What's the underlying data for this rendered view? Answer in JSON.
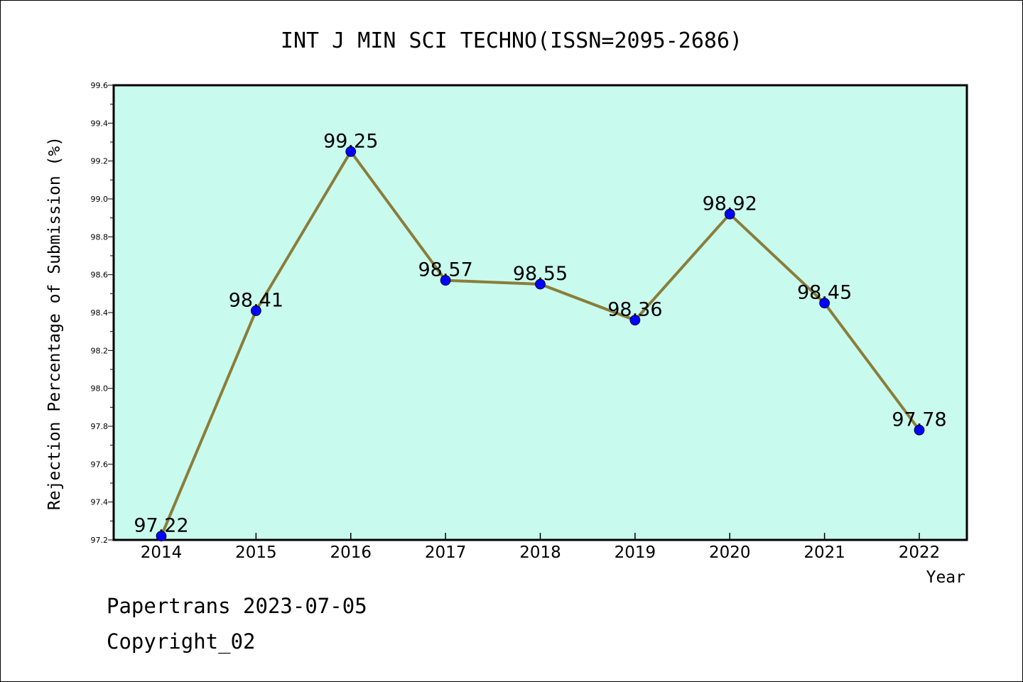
{
  "chart_data": {
    "type": "line",
    "title": "INT J MIN SCI TECHNO(ISSN=2095-2686)",
    "xlabel": "Year",
    "ylabel": "Rejection Percentage of Submission (%)",
    "categories": [
      "2014",
      "2015",
      "2016",
      "2017",
      "2018",
      "2019",
      "2020",
      "2021",
      "2022"
    ],
    "series": [
      {
        "values": [
          97.22,
          98.41,
          99.25,
          98.57,
          98.55,
          98.36,
          98.92,
          98.45,
          97.78
        ]
      }
    ],
    "data_labels": [
      "97.22",
      "98.41",
      "99.25",
      "98.57",
      "98.55",
      "98.36",
      "98.92",
      "98.45",
      "97.78"
    ],
    "ylim": [
      97.2,
      99.6
    ],
    "yticks": [
      "97.2",
      "97.4",
      "97.6",
      "97.8",
      "98.0",
      "98.2",
      "98.4",
      "98.6",
      "98.8",
      "99.0",
      "99.2",
      "99.4",
      "99.6"
    ],
    "grid": false,
    "colors": {
      "plot_background": "#c8fbee",
      "line": "#8b7d3a",
      "marker": "#0000ff"
    }
  },
  "footer": {
    "date_line": "Papertrans 2023-07-05",
    "copyright_line": "Copyright_02"
  }
}
